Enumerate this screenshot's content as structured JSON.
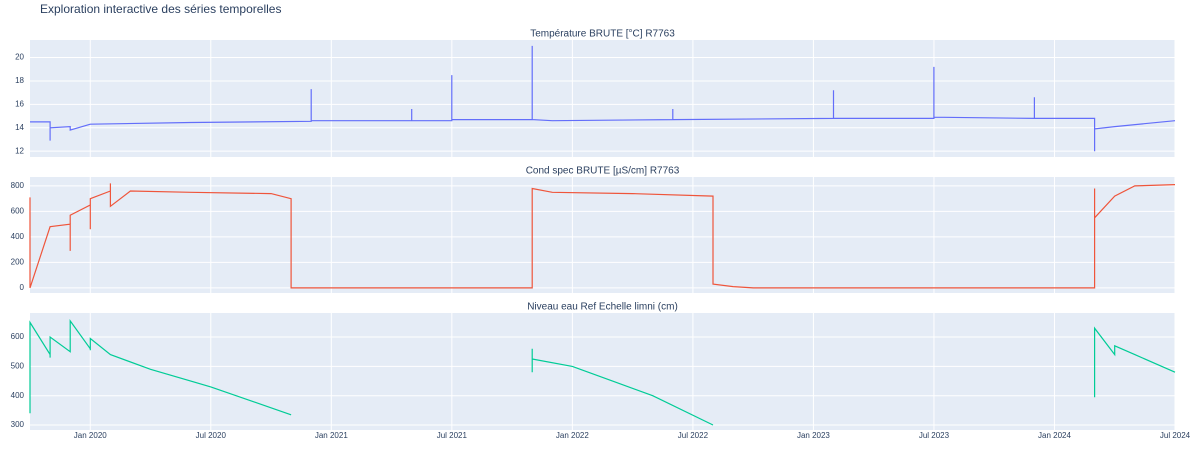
{
  "title": "Exploration interactive des séries temporelles",
  "chart_data": [
    {
      "type": "line",
      "title": "Température BRUTE [°C] R7763",
      "color": "#636efa",
      "x": [
        "2019-10",
        "2019-11",
        "2019-11",
        "2019-11",
        "2019-11",
        "2019-12",
        "2019-12",
        "2020-01",
        "2020-06",
        "2020-12",
        "2020-12",
        "2020-12",
        "2021-05",
        "2021-05",
        "2021-05",
        "2021-07",
        "2021-07",
        "2021-07",
        "2021-11",
        "2021-11",
        "2021-11",
        "2021-12",
        "2022-06",
        "2022-06",
        "2022-06",
        "2023-02",
        "2023-02",
        "2023-02",
        "2023-07",
        "2023-07",
        "2023-07",
        "2023-12",
        "2023-12",
        "2023-12",
        "2024-03",
        "2024-03",
        "2024-03",
        "2024-03",
        "2024-04",
        "2024-07"
      ],
      "values": [
        14.5,
        14.5,
        14.0,
        12.9,
        14.0,
        14.1,
        13.8,
        14.3,
        14.45,
        14.55,
        17.3,
        14.6,
        14.6,
        15.6,
        14.6,
        14.6,
        18.5,
        14.7,
        14.7,
        21.0,
        14.7,
        14.6,
        14.7,
        15.6,
        14.7,
        14.8,
        17.2,
        14.8,
        14.8,
        19.2,
        14.9,
        14.8,
        16.6,
        14.8,
        14.8,
        13.8,
        12.0,
        13.9,
        14.1,
        14.6
      ],
      "ylim": [
        11.5,
        21.5
      ],
      "yticks": [
        12,
        14,
        16,
        18,
        20
      ],
      "grid": true
    },
    {
      "type": "line",
      "title": "Cond spec BRUTE [µS/cm] R7763",
      "color": "#EF553B",
      "x": [
        "2019-10",
        "2019-10",
        "2019-10",
        "2019-11",
        "2019-12",
        "2019-12",
        "2019-12",
        "2020-01",
        "2020-01",
        "2020-01",
        "2020-02",
        "2020-02",
        "2020-02",
        "2020-03",
        "2020-06",
        "2020-10",
        "2020-11",
        "2020-11",
        "2021-06",
        "2021-11",
        "2021-11",
        "2021-12",
        "2022-04",
        "2022-08",
        "2022-08",
        "2022-09",
        "2022-10",
        "2024-03",
        "2024-03",
        "2024-03",
        "2024-04",
        "2024-05",
        "2024-07"
      ],
      "values": [
        710,
        690,
        0,
        480,
        500,
        290,
        570,
        650,
        460,
        700,
        760,
        820,
        640,
        760,
        750,
        740,
        700,
        0,
        0,
        0,
        780,
        750,
        740,
        720,
        30,
        10,
        0,
        0,
        780,
        550,
        720,
        800,
        810
      ],
      "ylim": [
        -40,
        870
      ],
      "yticks": [
        0,
        200,
        400,
        600,
        800
      ],
      "grid": true
    },
    {
      "type": "line",
      "title": "Niveau eau Ref Echelle limni (cm)",
      "color": "#00cc96",
      "x": [
        "2019-10",
        "2019-10",
        "2019-10",
        "2019-11",
        "2019-11",
        "2019-11",
        "2019-12",
        "2019-12",
        "2020-01",
        "2020-01",
        "2020-01",
        "2020-02",
        "2020-04",
        "2020-07",
        "2020-11",
        "2021-06",
        "2021-11",
        "2021-11",
        "2021-11",
        "2022-01",
        "2022-05",
        "2022-08",
        "2023-06",
        "2024-03",
        "2024-03",
        "2024-03",
        "2024-03",
        "2024-04",
        "2024-04",
        "2024-05",
        "2024-07"
      ],
      "values": [
        360,
        340,
        650,
        540,
        530,
        600,
        550,
        655,
        560,
        555,
        595,
        540,
        490,
        430,
        335,
        null,
        560,
        480,
        525,
        500,
        400,
        300,
        null,
        395,
        600,
        540,
        630,
        540,
        570,
        540,
        480
      ],
      "ylim": [
        283,
        682
      ],
      "yticks": [
        300,
        400,
        500,
        600
      ],
      "grid": true,
      "xlim": [
        "2019-10",
        "2024-07"
      ],
      "xticks": [
        {
          "value": "2020-01",
          "label": "Jan 2020"
        },
        {
          "value": "2020-07",
          "label": "Jul 2020"
        },
        {
          "value": "2021-01",
          "label": "Jan 2021"
        },
        {
          "value": "2021-07",
          "label": "Jul 2021"
        },
        {
          "value": "2022-01",
          "label": "Jan 2022"
        },
        {
          "value": "2022-07",
          "label": "Jul 2022"
        },
        {
          "value": "2023-01",
          "label": "Jan 2023"
        },
        {
          "value": "2023-07",
          "label": "Jul 2023"
        },
        {
          "value": "2024-01",
          "label": "Jan 2024"
        },
        {
          "value": "2024-07",
          "label": "Jul 2024"
        }
      ]
    }
  ]
}
